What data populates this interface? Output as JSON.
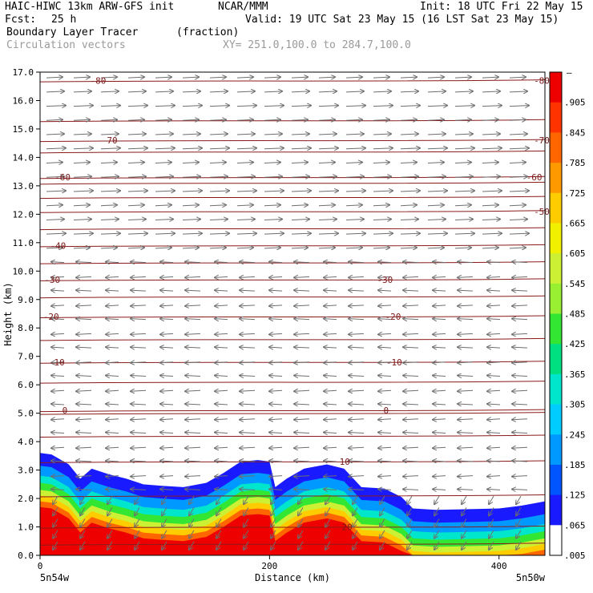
{
  "header": {
    "model": "HAIC-HIWC 13km ARW-GFS init",
    "org": "NCAR/MMM",
    "init": "Init: 18 UTC Fri 22 May 15",
    "fcst_label": "Fcst:",
    "fcst_value": "25 h",
    "valid": "Valid: 19 UTC Sat 23 May 15 (16 LST Sat 23 May 15)",
    "field": "Boundary Layer Tracer",
    "units": "(fraction)",
    "overlay": "Circulation vectors",
    "xy": "XY= 251.0,100.0 to 284.7,100.0"
  },
  "chart_data": {
    "type": "heatmap",
    "xlabel": "Distance (km)",
    "ylabel": "Height (km)",
    "xlim": [
      0,
      440
    ],
    "ylim": [
      0,
      17
    ],
    "x_ticks": [
      0,
      200,
      400
    ],
    "x_tick_labels": [
      "0",
      "200",
      "400"
    ],
    "y_ticks": [
      0,
      1,
      2,
      3,
      4,
      5,
      6,
      7,
      8,
      9,
      10,
      11,
      12,
      13,
      14,
      15,
      16,
      17
    ],
    "y_tick_labels": [
      "0.0",
      "1.0",
      "2.0",
      "3.0",
      "4.0",
      "5.0",
      "6.0",
      "7.0",
      "8.0",
      "9.0",
      "10.0",
      "11.0",
      "12.0",
      "13.0",
      "14.0",
      "15.0",
      "16.0",
      "17.0"
    ],
    "endpoint_left": "5n54w",
    "endpoint_right": "5n50w",
    "colorbar": {
      "top_label": "–",
      "labels": [
        ".905",
        ".845",
        ".785",
        ".725",
        ".665",
        ".605",
        ".545",
        ".485",
        ".425",
        ".365",
        ".305",
        ".245",
        ".185",
        ".125",
        ".065",
        ".005"
      ],
      "colors": [
        "#ffffff",
        "#1a1aff",
        "#0055ff",
        "#0099ff",
        "#00ccff",
        "#00e6cc",
        "#00e080",
        "#33e633",
        "#99f033",
        "#ccf033",
        "#f0f000",
        "#ffcc00",
        "#ff9900",
        "#ff6600",
        "#ff3300",
        "#ee0000"
      ]
    },
    "tracer_top_km": [
      [
        0,
        3.6
      ],
      [
        10,
        3.55
      ],
      [
        25,
        3.2
      ],
      [
        35,
        2.7
      ],
      [
        45,
        3.05
      ],
      [
        60,
        2.85
      ],
      [
        75,
        2.7
      ],
      [
        90,
        2.5
      ],
      [
        105,
        2.45
      ],
      [
        125,
        2.4
      ],
      [
        145,
        2.55
      ],
      [
        160,
        2.9
      ],
      [
        175,
        3.3
      ],
      [
        190,
        3.35
      ],
      [
        200,
        3.3
      ],
      [
        205,
        2.4
      ],
      [
        215,
        2.7
      ],
      [
        230,
        3.05
      ],
      [
        250,
        3.2
      ],
      [
        265,
        3.05
      ],
      [
        280,
        2.4
      ],
      [
        300,
        2.35
      ],
      [
        315,
        2.05
      ],
      [
        325,
        1.65
      ],
      [
        345,
        1.6
      ],
      [
        370,
        1.62
      ],
      [
        400,
        1.65
      ],
      [
        420,
        1.75
      ],
      [
        440,
        1.9
      ]
    ],
    "tracer_layers": [
      {
        "color": "#1a1aff",
        "offset_km": 0.0
      },
      {
        "color": "#0099ff",
        "offset_km": 0.45
      },
      {
        "color": "#00e6cc",
        "offset_km": 0.8
      },
      {
        "color": "#33e633",
        "offset_km": 1.05
      },
      {
        "color": "#ccf033",
        "offset_km": 1.3
      },
      {
        "color": "#ffcc00",
        "offset_km": 1.5
      },
      {
        "color": "#ff6600",
        "offset_km": 1.7
      },
      {
        "color": "#ee0000",
        "offset_km": 1.9
      }
    ],
    "isotherms": [
      {
        "label": "-80",
        "height_km": 16.7,
        "label_x": [
          45,
          440
        ]
      },
      {
        "label": "-70",
        "height_km": 14.6,
        "label_x": [
          55,
          440
        ]
      },
      {
        "label": "-60",
        "height_km": 13.3,
        "label_x": [
          14,
          425
        ]
      },
      {
        "label": "-50",
        "height_km": 12.1,
        "label_x": [
          435
        ]
      },
      {
        "label": "-40",
        "height_km": 10.9,
        "label_x": [
          10
        ]
      },
      {
        "label": "-30",
        "height_km": 9.7,
        "label_x": [
          5,
          295
        ]
      },
      {
        "label": "-20",
        "height_km": 8.4,
        "label_x": [
          4,
          302
        ]
      },
      {
        "label": "-10",
        "height_km": 6.8,
        "label_x": [
          9,
          303
        ]
      },
      {
        "label": "0",
        "height_km": 5.1,
        "label_x": [
          16,
          296
        ]
      },
      {
        "label": "10",
        "height_km": 3.3,
        "label_x": [
          260
        ]
      },
      {
        "label": "20",
        "height_km": 1.0,
        "label_x": [
          262
        ]
      }
    ],
    "extra_isotherm_heights_km": [
      15.3,
      14.2,
      13.1,
      12.6,
      11.5,
      10.3,
      9.1,
      7.6,
      6.1,
      5.0,
      4.2,
      2.1,
      0.4
    ],
    "vectors": {
      "upper_rows_km": [
        16.8,
        16.3,
        15.8,
        15.3,
        14.8,
        14.3,
        13.8,
        13.3,
        12.8,
        12.3,
        11.8,
        11.3,
        10.8
      ],
      "mid_rows_km": [
        10.3,
        9.8,
        9.3,
        8.8,
        8.3,
        7.8,
        7.3,
        6.8,
        6.3,
        5.8,
        5.3,
        4.8,
        4.3,
        3.8,
        3.3,
        2.8,
        2.3
      ],
      "low_rows_km": [
        1.8,
        1.4,
        1.0,
        0.6,
        0.2
      ],
      "upper_direction": "east",
      "mid_direction": "west",
      "low_direction": "south-west",
      "color": "#6e6e6e"
    }
  }
}
